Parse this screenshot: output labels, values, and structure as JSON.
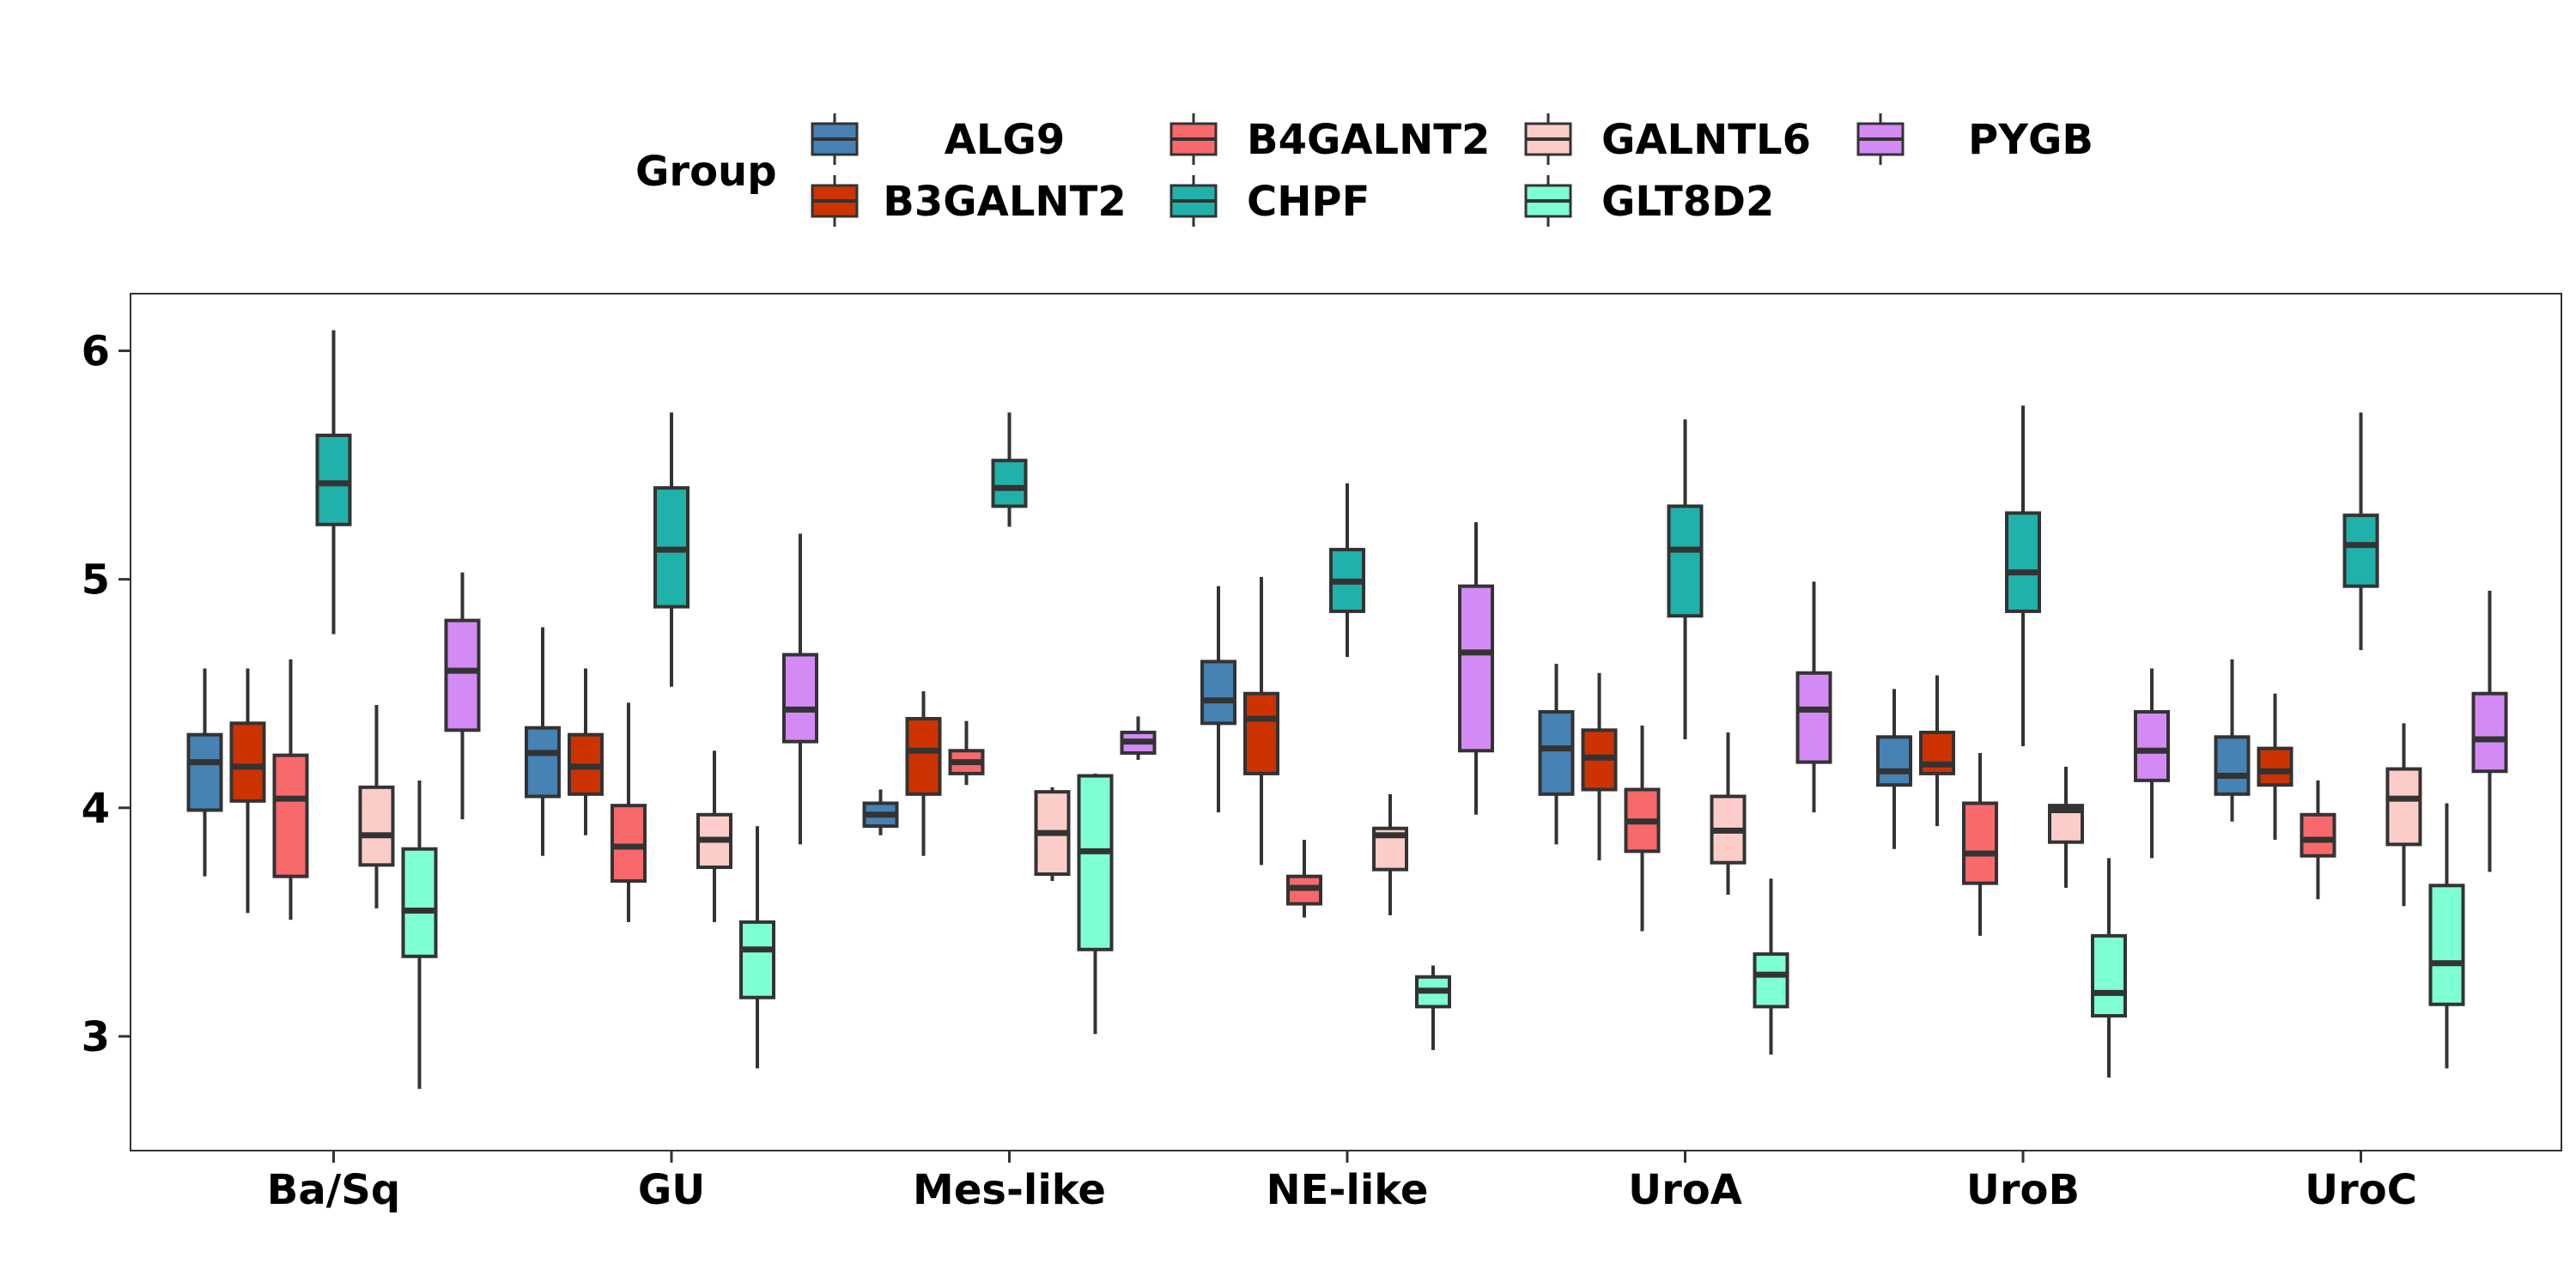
{
  "chart_data": {
    "type": "boxplot",
    "legend": {
      "title": "Group",
      "placement": "top"
    },
    "categories": [
      "Ba/Sq",
      "GU",
      "Mes-like",
      "NE-like",
      "UroA",
      "UroB",
      "UroC"
    ],
    "ylim": [
      2.5,
      6.25
    ],
    "yticks": [
      3,
      4,
      5,
      6
    ],
    "grid": false,
    "series": [
      {
        "name": "ALG9",
        "color": "#4682B4",
        "boxes": [
          {
            "min": 3.7,
            "q1": 3.99,
            "median": 4.2,
            "q3": 4.32,
            "max": 4.61
          },
          {
            "min": 3.79,
            "q1": 4.05,
            "median": 4.24,
            "q3": 4.35,
            "max": 4.79
          },
          {
            "min": 3.88,
            "q1": 3.92,
            "median": 3.97,
            "q3": 4.02,
            "max": 4.08
          },
          {
            "min": 3.98,
            "q1": 4.37,
            "median": 4.47,
            "q3": 4.64,
            "max": 4.97
          },
          {
            "min": 3.84,
            "q1": 4.06,
            "median": 4.26,
            "q3": 4.42,
            "max": 4.63
          },
          {
            "min": 3.82,
            "q1": 4.1,
            "median": 4.16,
            "q3": 4.31,
            "max": 4.52
          },
          {
            "min": 3.94,
            "q1": 4.06,
            "median": 4.14,
            "q3": 4.31,
            "max": 4.65
          }
        ]
      },
      {
        "name": "B3GALNT2",
        "color": "#CC3300",
        "boxes": [
          {
            "min": 3.54,
            "q1": 4.03,
            "median": 4.18,
            "q3": 4.37,
            "max": 4.61
          },
          {
            "min": 3.88,
            "q1": 4.06,
            "median": 4.18,
            "q3": 4.32,
            "max": 4.61
          },
          {
            "min": 3.79,
            "q1": 4.06,
            "median": 4.25,
            "q3": 4.39,
            "max": 4.51
          },
          {
            "min": 3.75,
            "q1": 4.15,
            "median": 4.39,
            "q3": 4.5,
            "max": 5.01
          },
          {
            "min": 3.77,
            "q1": 4.08,
            "median": 4.22,
            "q3": 4.34,
            "max": 4.59
          },
          {
            "min": 3.92,
            "q1": 4.15,
            "median": 4.19,
            "q3": 4.33,
            "max": 4.58
          },
          {
            "min": 3.86,
            "q1": 4.1,
            "median": 4.16,
            "q3": 4.26,
            "max": 4.5
          }
        ]
      },
      {
        "name": "B4GALNT2",
        "color": "#F8696B",
        "boxes": [
          {
            "min": 3.51,
            "q1": 3.7,
            "median": 4.04,
            "q3": 4.23,
            "max": 4.65
          },
          {
            "min": 3.5,
            "q1": 3.68,
            "median": 3.83,
            "q3": 4.01,
            "max": 4.46
          },
          {
            "min": 4.1,
            "q1": 4.15,
            "median": 4.2,
            "q3": 4.25,
            "max": 4.38
          },
          {
            "min": 3.52,
            "q1": 3.58,
            "median": 3.65,
            "q3": 3.7,
            "max": 3.86
          },
          {
            "min": 3.46,
            "q1": 3.81,
            "median": 3.94,
            "q3": 4.08,
            "max": 4.36
          },
          {
            "min": 3.44,
            "q1": 3.67,
            "median": 3.8,
            "q3": 4.02,
            "max": 4.24
          },
          {
            "min": 3.6,
            "q1": 3.79,
            "median": 3.86,
            "q3": 3.97,
            "max": 4.12
          }
        ]
      },
      {
        "name": "CHPF",
        "color": "#20B2AA",
        "boxes": [
          {
            "min": 4.76,
            "q1": 5.24,
            "median": 5.42,
            "q3": 5.63,
            "max": 6.09
          },
          {
            "min": 4.53,
            "q1": 4.88,
            "median": 5.13,
            "q3": 5.4,
            "max": 5.73
          },
          {
            "min": 5.23,
            "q1": 5.32,
            "median": 5.4,
            "q3": 5.52,
            "max": 5.73
          },
          {
            "min": 4.66,
            "q1": 4.86,
            "median": 4.99,
            "q3": 5.13,
            "max": 5.42
          },
          {
            "min": 4.3,
            "q1": 4.84,
            "median": 5.13,
            "q3": 5.32,
            "max": 5.7
          },
          {
            "min": 4.27,
            "q1": 4.86,
            "median": 5.03,
            "q3": 5.29,
            "max": 5.76
          },
          {
            "min": 4.69,
            "q1": 4.97,
            "median": 5.15,
            "q3": 5.28,
            "max": 5.73
          }
        ]
      },
      {
        "name": "GALNTL6",
        "color": "#FCCDC8",
        "boxes": [
          {
            "min": 3.56,
            "q1": 3.75,
            "median": 3.88,
            "q3": 4.09,
            "max": 4.45
          },
          {
            "min": 3.5,
            "q1": 3.74,
            "median": 3.86,
            "q3": 3.97,
            "max": 4.25
          },
          {
            "min": 3.68,
            "q1": 3.71,
            "median": 3.89,
            "q3": 4.07,
            "max": 4.09
          },
          {
            "min": 3.53,
            "q1": 3.73,
            "median": 3.88,
            "q3": 3.91,
            "max": 4.06
          },
          {
            "min": 3.62,
            "q1": 3.76,
            "median": 3.9,
            "q3": 4.05,
            "max": 4.33
          },
          {
            "min": 3.65,
            "q1": 3.85,
            "median": 3.99,
            "q3": 4.01,
            "max": 4.18
          },
          {
            "min": 3.57,
            "q1": 3.84,
            "median": 4.04,
            "q3": 4.17,
            "max": 4.37
          }
        ]
      },
      {
        "name": "GLT8D2",
        "color": "#7FFFD4",
        "boxes": [
          {
            "min": 2.77,
            "q1": 3.35,
            "median": 3.55,
            "q3": 3.82,
            "max": 4.12
          },
          {
            "min": 2.86,
            "q1": 3.17,
            "median": 3.38,
            "q3": 3.5,
            "max": 3.92
          },
          {
            "min": 3.01,
            "q1": 3.38,
            "median": 3.81,
            "q3": 4.14,
            "max": 4.15
          },
          {
            "min": 2.94,
            "q1": 3.13,
            "median": 3.2,
            "q3": 3.26,
            "max": 3.31
          },
          {
            "min": 2.92,
            "q1": 3.13,
            "median": 3.27,
            "q3": 3.36,
            "max": 3.69
          },
          {
            "min": 2.82,
            "q1": 3.09,
            "median": 3.19,
            "q3": 3.44,
            "max": 3.78
          },
          {
            "min": 2.86,
            "q1": 3.14,
            "median": 3.32,
            "q3": 3.66,
            "max": 4.02
          }
        ]
      },
      {
        "name": "PYGB",
        "color": "#D38AF5",
        "boxes": [
          {
            "min": 3.95,
            "q1": 4.34,
            "median": 4.6,
            "q3": 4.82,
            "max": 5.03
          },
          {
            "min": 3.84,
            "q1": 4.29,
            "median": 4.43,
            "q3": 4.67,
            "max": 5.2
          },
          {
            "min": 4.21,
            "q1": 4.24,
            "median": 4.29,
            "q3": 4.33,
            "max": 4.4
          },
          {
            "min": 3.97,
            "q1": 4.25,
            "median": 4.68,
            "q3": 4.97,
            "max": 5.25
          },
          {
            "min": 3.98,
            "q1": 4.2,
            "median": 4.43,
            "q3": 4.59,
            "max": 4.99
          },
          {
            "min": 3.78,
            "q1": 4.12,
            "median": 4.25,
            "q3": 4.42,
            "max": 4.61
          },
          {
            "min": 3.72,
            "q1": 4.16,
            "median": 4.3,
            "q3": 4.5,
            "max": 4.95
          }
        ]
      }
    ]
  }
}
